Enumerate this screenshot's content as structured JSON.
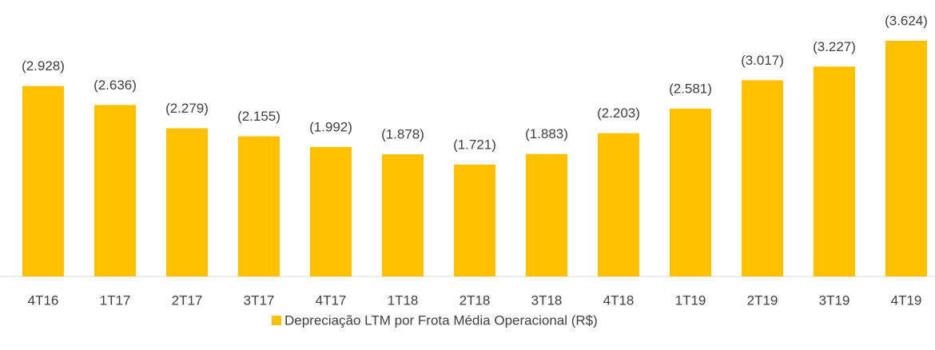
{
  "chart_data": {
    "type": "bar",
    "categories": [
      "4T16",
      "1T17",
      "2T17",
      "3T17",
      "4T17",
      "1T18",
      "2T18",
      "3T18",
      "4T18",
      "1T19",
      "2T19",
      "3T19",
      "4T19"
    ],
    "series": [
      {
        "name": "Depreciação LTM por Frota Média Operacional (R$)",
        "color": "#FFC000",
        "values": [
          2928,
          2636,
          2279,
          2155,
          1992,
          1878,
          1721,
          1883,
          2203,
          2581,
          3017,
          3227,
          3624
        ],
        "value_labels": [
          "(2.928)",
          "(2.636)",
          "(2.279)",
          "(2.155)",
          "(1.992)",
          "(1.878)",
          "(1.721)",
          "(1.883)",
          "(2.203)",
          "(2.581)",
          "(3.017)",
          "(3.227)",
          "(3.624)"
        ]
      }
    ],
    "legend": "bottom"
  }
}
